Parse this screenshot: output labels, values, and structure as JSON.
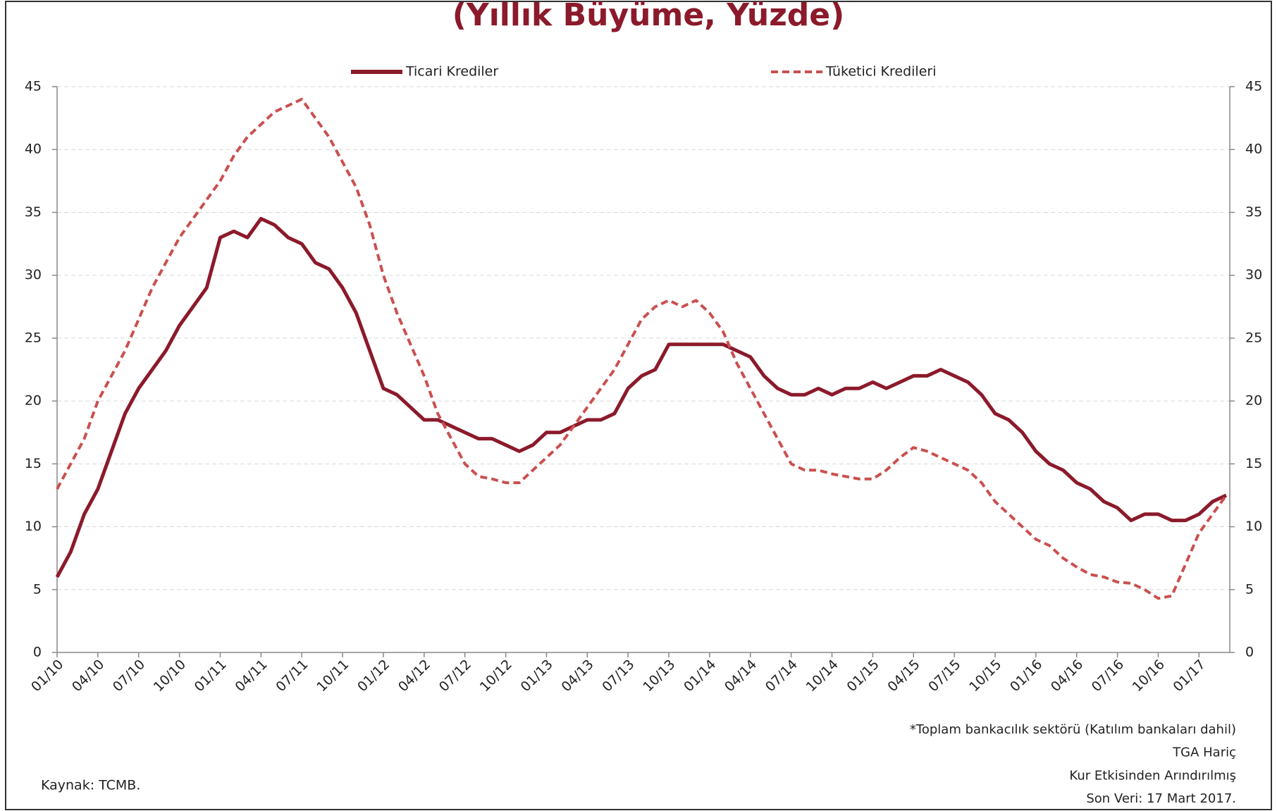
{
  "chart_data": {
    "type": "line",
    "title": "(Yıllık Büyüme, Yüzde)",
    "categories": [
      "01/10",
      null,
      null,
      "04/10",
      null,
      null,
      "07/10",
      null,
      null,
      "10/10",
      null,
      null,
      "01/11",
      null,
      null,
      "04/11",
      null,
      null,
      "07/11",
      null,
      null,
      "10/11",
      null,
      null,
      "01/12",
      null,
      null,
      "04/12",
      null,
      null,
      "07/12",
      null,
      null,
      "10/12",
      null,
      null,
      "01/13",
      null,
      null,
      "04/13",
      null,
      null,
      "07/13",
      null,
      null,
      "10/13",
      null,
      null,
      "01/14",
      null,
      null,
      "04/14",
      null,
      null,
      "07/14",
      null,
      null,
      "10/14",
      null,
      null,
      "01/15",
      null,
      null,
      "04/15",
      null,
      null,
      "07/15",
      null,
      null,
      "10/15",
      null,
      null,
      "01/16",
      null,
      null,
      "04/16",
      null,
      null,
      "07/16",
      null,
      null,
      "10/16",
      null,
      null,
      "01/17",
      null,
      null
    ],
    "series": [
      {
        "name": "Ticari Krediler",
        "color": "#8b1a2b",
        "dash": false,
        "values": [
          6,
          8,
          11,
          13,
          16,
          19,
          21,
          22.5,
          24,
          26,
          27.5,
          29,
          33,
          33.5,
          33,
          34.5,
          34,
          33,
          32.5,
          31,
          30.5,
          29,
          27,
          24,
          21,
          20.5,
          19.5,
          18.5,
          18.5,
          18,
          17.5,
          17,
          17,
          16.5,
          16,
          16.5,
          17.5,
          17.5,
          18,
          18.5,
          18.5,
          19,
          21,
          22,
          22.5,
          24.5,
          24.5,
          24.5,
          24.5,
          24.5,
          24,
          23.5,
          22,
          21,
          20.5,
          20.5,
          21,
          20.5,
          21,
          21,
          21.5,
          21,
          21.5,
          22,
          22,
          22.5,
          22,
          21.5,
          20.5,
          19,
          18.5,
          17.5,
          16,
          15,
          14.5,
          13.5,
          13,
          12,
          11.5,
          10.5,
          11,
          11,
          10.5,
          10.5,
          11,
          12,
          12.5
        ]
      },
      {
        "name": "Tüketici Kredileri",
        "color": "#c9504f",
        "dash": true,
        "values": [
          13,
          15,
          17,
          20,
          22,
          24,
          26.5,
          29,
          31,
          33,
          34.5,
          36,
          37.5,
          39.5,
          41,
          42,
          43,
          43.5,
          44,
          42.5,
          41,
          39,
          37,
          34,
          30,
          27,
          24.5,
          22,
          19,
          17,
          15,
          14,
          13.8,
          13.5,
          13.5,
          14.5,
          15.5,
          16.5,
          18,
          19.5,
          21,
          22.5,
          24.5,
          26.5,
          27.5,
          28,
          27.5,
          28,
          27,
          25.5,
          23,
          21,
          19,
          17,
          15,
          14.5,
          14.5,
          14.2,
          14,
          13.8,
          13.8,
          14.5,
          15.5,
          16.3,
          16,
          15.5,
          15,
          14.5,
          13.5,
          12,
          11,
          10,
          9,
          8.5,
          7.5,
          6.8,
          6.2,
          6,
          5.6,
          5.5,
          5,
          4.3,
          4.5,
          7,
          9.5,
          11,
          12.5
        ]
      }
    ],
    "ylim": [
      0,
      45
    ],
    "yticks": [
      0,
      5,
      10,
      15,
      20,
      25,
      30,
      35,
      40,
      45
    ],
    "grid": true,
    "notes": [
      "*Toplam bankacılık sektörü (Katılım bankaları dahil)",
      "TGA Hariç",
      "Kur Etkisinden Arındırılmış",
      "Son Veri: 17 Mart 2017."
    ],
    "source": "Kaynak: TCMB."
  }
}
